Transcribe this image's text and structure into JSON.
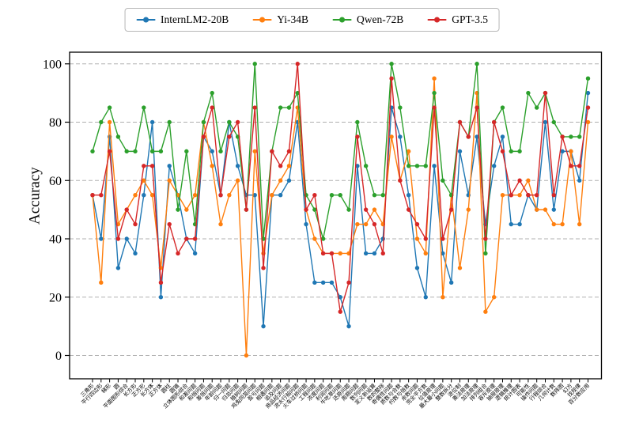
{
  "chart_data": {
    "type": "line",
    "title": "",
    "xlabel": "",
    "ylabel": "Accuracy",
    "ylim": [
      -8,
      104
    ],
    "yticks": [
      0,
      20,
      40,
      60,
      80,
      100
    ],
    "grid": "horizontal-dashed",
    "legend_position": "top-center-outside",
    "x_tick_rotation_deg": 45,
    "categories": [
      "三角形",
      "平行四边形",
      "梯形",
      "圆",
      "平面图形综合",
      "长方形",
      "正方形",
      "长方体",
      "正方体",
      "圆柱",
      "圆锥",
      "立体图形综合",
      "和差问题",
      "和倍问题",
      "差倍问题",
      "年龄问题",
      "归一问题",
      "归总问题",
      "植树问题",
      "鸡兔同笼问题",
      "盈亏问题",
      "相遇问题",
      "追及问题",
      "商品经济问题",
      "流水行船问题",
      "火车过桥问题",
      "工程问题",
      "浓度问题",
      "利润问题",
      "牛吃草问题",
      "还原问题",
      "周期问题",
      "数列问题",
      "定义新运算",
      "数的整除",
      "奇偶性问题",
      "质数与合数",
      "约数与倍数",
      "余数问题",
      "完全平方数",
      "位值原理",
      "最大最小问题",
      "整数拆分",
      "进位制",
      "乘法原理",
      "加法原理",
      "排列组合",
      "容斥原理",
      "抽屉原理",
      "逻辑推理",
      "统计图表",
      "可能性",
      "操作问题",
      "行程综合",
      "几何计数",
      "数阵图",
      "幻方",
      "找规律",
      "百分数应用"
    ],
    "series": [
      {
        "name": "InternLM2-20B",
        "color": "#1f77b4",
        "values": [
          55,
          40,
          75,
          30,
          40,
          35,
          55,
          80,
          20,
          65,
          55,
          40,
          35,
          75,
          70,
          55,
          80,
          65,
          55,
          55,
          10,
          55,
          55,
          60,
          80,
          45,
          25,
          25,
          25,
          20,
          10,
          65,
          35,
          35,
          40,
          85,
          75,
          55,
          30,
          20,
          65,
          35,
          25,
          70,
          55,
          75,
          45,
          65,
          75,
          45,
          45,
          55,
          50,
          80,
          50,
          70,
          70,
          60,
          90
        ]
      },
      {
        "name": "Yi-34B",
        "color": "#ff7f0e",
        "values": [
          55,
          25,
          80,
          45,
          50,
          55,
          60,
          55,
          30,
          60,
          55,
          50,
          55,
          80,
          65,
          45,
          55,
          60,
          0,
          70,
          35,
          55,
          60,
          65,
          85,
          50,
          40,
          35,
          35,
          35,
          35,
          45,
          45,
          50,
          45,
          75,
          60,
          70,
          40,
          35,
          95,
          20,
          55,
          30,
          50,
          90,
          15,
          20,
          55,
          55,
          55,
          60,
          50,
          50,
          45,
          45,
          70,
          45,
          80
        ]
      },
      {
        "name": "Qwen-72B",
        "color": "#2ca02c",
        "values": [
          70,
          80,
          85,
          75,
          70,
          70,
          85,
          70,
          70,
          80,
          50,
          70,
          45,
          80,
          90,
          70,
          80,
          75,
          50,
          100,
          40,
          70,
          85,
          85,
          90,
          55,
          50,
          40,
          55,
          55,
          50,
          80,
          65,
          55,
          55,
          100,
          85,
          65,
          65,
          65,
          90,
          60,
          55,
          80,
          75,
          100,
          35,
          80,
          85,
          70,
          70,
          90,
          85,
          90,
          80,
          75,
          75,
          75,
          95
        ]
      },
      {
        "name": "GPT-3.5",
        "color": "#d62728",
        "values": [
          55,
          55,
          70,
          40,
          50,
          45,
          65,
          65,
          25,
          45,
          35,
          40,
          40,
          75,
          85,
          55,
          75,
          80,
          50,
          85,
          30,
          70,
          65,
          70,
          100,
          50,
          55,
          35,
          35,
          15,
          25,
          75,
          50,
          45,
          35,
          95,
          60,
          50,
          45,
          40,
          85,
          40,
          50,
          80,
          75,
          85,
          40,
          80,
          70,
          55,
          60,
          55,
          55,
          90,
          55,
          75,
          65,
          65,
          85
        ]
      }
    ]
  }
}
